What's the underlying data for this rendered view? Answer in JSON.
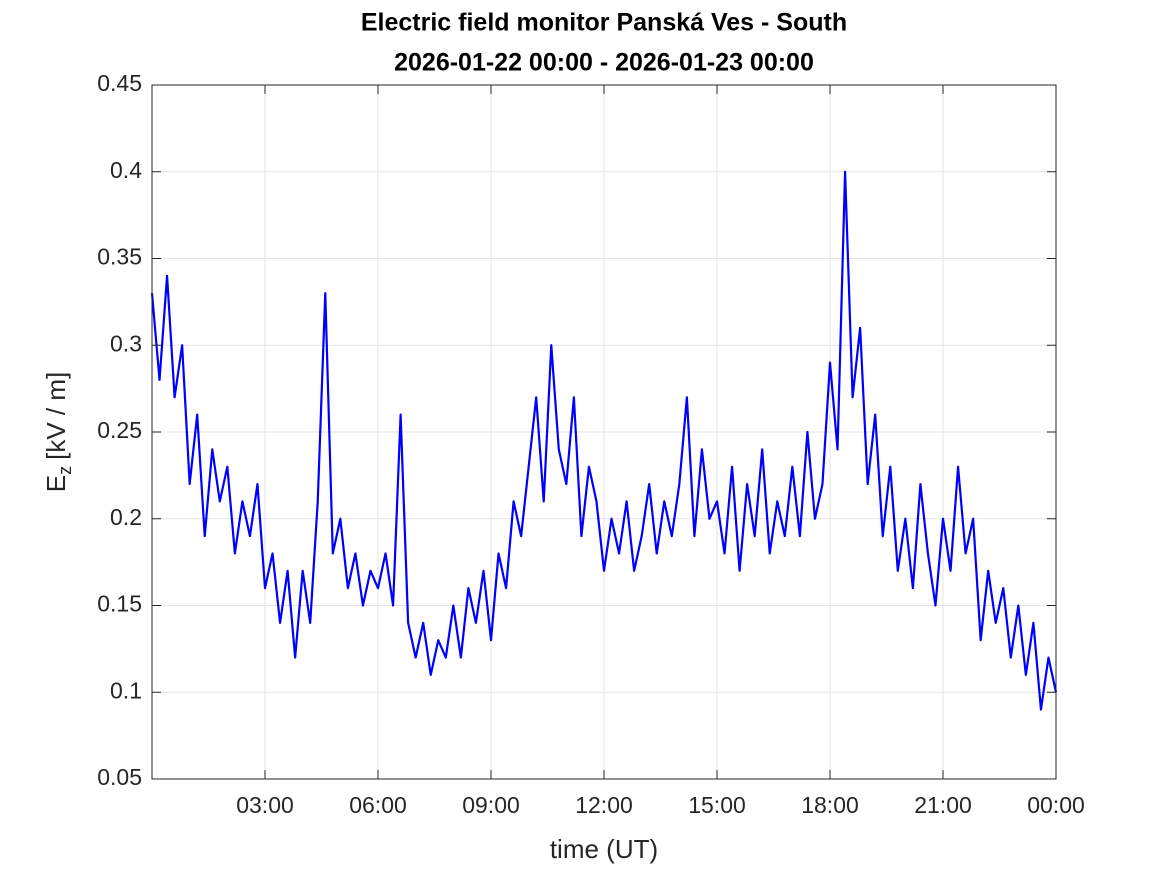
{
  "chart_data": {
    "type": "line",
    "title": "Electric field monitor Panská Ves - South",
    "subtitle": "2026-01-22 00:00 - 2026-01-23 00:00",
    "xlabel": "time (UT)",
    "ylabel": [
      "E",
      "z",
      "[kV / m]"
    ],
    "xlim": [
      0,
      24
    ],
    "ylim": [
      0.05,
      0.45
    ],
    "xticks": [
      {
        "value": 3,
        "label": "03:00"
      },
      {
        "value": 6,
        "label": "06:00"
      },
      {
        "value": 9,
        "label": "09:00"
      },
      {
        "value": 12,
        "label": "12:00"
      },
      {
        "value": 15,
        "label": "15:00"
      },
      {
        "value": 18,
        "label": "18:00"
      },
      {
        "value": 21,
        "label": "21:00"
      },
      {
        "value": 24,
        "label": "00:00"
      }
    ],
    "yticks": [
      0.05,
      0.1,
      0.15,
      0.2,
      0.25,
      0.3,
      0.35,
      0.4,
      0.45
    ],
    "grid": true,
    "x": [
      0,
      0.2,
      0.4,
      0.6,
      0.8,
      1,
      1.2,
      1.4,
      1.6,
      1.8,
      2,
      2.2,
      2.4,
      2.6,
      2.8,
      3,
      3.2,
      3.4,
      3.6,
      3.8,
      4,
      4.2,
      4.4,
      4.6,
      4.8,
      5,
      5.2,
      5.4,
      5.6,
      5.8,
      6,
      6.2,
      6.4,
      6.6,
      6.8,
      7,
      7.2,
      7.4,
      7.6,
      7.8,
      8,
      8.2,
      8.4,
      8.6,
      8.8,
      9,
      9.2,
      9.4,
      9.6,
      9.8,
      10,
      10.2,
      10.4,
      10.6,
      10.8,
      11,
      11.2,
      11.4,
      11.6,
      11.8,
      12,
      12.2,
      12.4,
      12.6,
      12.8,
      13,
      13.2,
      13.4,
      13.6,
      13.8,
      14,
      14.2,
      14.4,
      14.6,
      14.8,
      15,
      15.2,
      15.4,
      15.6,
      15.8,
      16,
      16.2,
      16.4,
      16.6,
      16.8,
      17,
      17.2,
      17.4,
      17.6,
      17.8,
      18,
      18.2,
      18.4,
      18.6,
      18.8,
      19,
      19.2,
      19.4,
      19.6,
      19.8,
      20,
      20.2,
      20.4,
      20.6,
      20.8,
      21,
      21.2,
      21.4,
      21.6,
      21.8,
      22,
      22.2,
      22.4,
      22.6,
      22.8,
      23,
      23.2,
      23.4,
      23.6,
      23.8,
      24
    ],
    "series": [
      {
        "color": "#0000ff",
        "values": [
          0.33,
          0.28,
          0.34,
          0.27,
          0.3,
          0.22,
          0.26,
          0.19,
          0.24,
          0.21,
          0.23,
          0.18,
          0.21,
          0.19,
          0.22,
          0.16,
          0.18,
          0.14,
          0.17,
          0.12,
          0.17,
          0.14,
          0.21,
          0.33,
          0.18,
          0.2,
          0.16,
          0.18,
          0.15,
          0.17,
          0.16,
          0.18,
          0.15,
          0.26,
          0.14,
          0.12,
          0.14,
          0.11,
          0.13,
          0.12,
          0.15,
          0.12,
          0.16,
          0.14,
          0.17,
          0.13,
          0.18,
          0.16,
          0.21,
          0.19,
          0.23,
          0.27,
          0.21,
          0.3,
          0.24,
          0.22,
          0.27,
          0.19,
          0.23,
          0.21,
          0.17,
          0.2,
          0.18,
          0.21,
          0.17,
          0.19,
          0.22,
          0.18,
          0.21,
          0.19,
          0.22,
          0.27,
          0.19,
          0.24,
          0.2,
          0.21,
          0.18,
          0.23,
          0.17,
          0.22,
          0.19,
          0.24,
          0.18,
          0.21,
          0.19,
          0.23,
          0.19,
          0.25,
          0.2,
          0.22,
          0.29,
          0.24,
          0.4,
          0.27,
          0.31,
          0.22,
          0.26,
          0.19,
          0.23,
          0.17,
          0.2,
          0.16,
          0.22,
          0.18,
          0.15,
          0.2,
          0.17,
          0.23,
          0.18,
          0.2,
          0.13,
          0.17,
          0.14,
          0.16,
          0.12,
          0.15,
          0.11,
          0.14,
          0.09,
          0.12,
          0.1
        ]
      }
    ]
  }
}
